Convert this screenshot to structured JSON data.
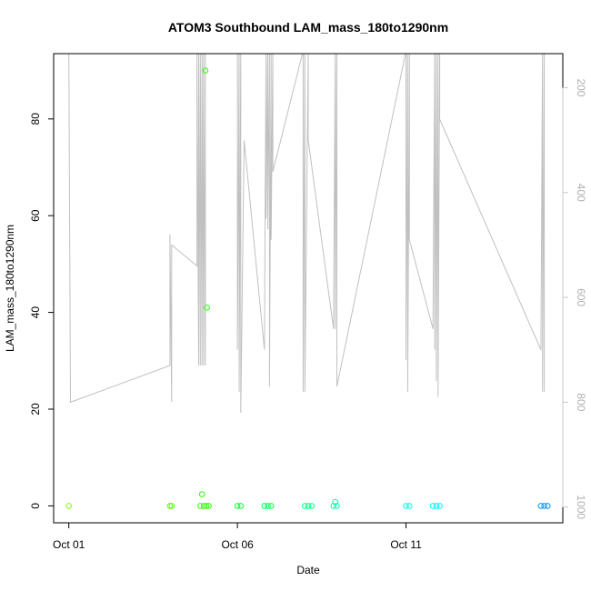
{
  "chart_data": {
    "type": "scatter",
    "title": "ATOM3 Southbound LAM_mass_180to1290nm",
    "xlabel": "Date",
    "ylabel": "LAM_mass_180to1290nm",
    "x_ticks": [
      "Oct 01",
      "Oct 06",
      "Oct 11"
    ],
    "x_tick_days": [
      1,
      6,
      11
    ],
    "xlim": [
      0.55,
      15.65
    ],
    "ylim": [
      -3.5,
      93.5
    ],
    "y_ticks": [
      0,
      20,
      40,
      60,
      80
    ],
    "y2_ticks": [
      200,
      400,
      600,
      800,
      1000
    ],
    "y2_inverted": true,
    "y2lim": [
      1030,
      135
    ],
    "y2_color": "#c8c8c8",
    "grid": false,
    "series": [
      {
        "kind": "points",
        "values_color_coded_by_latitude": true,
        "points": [
          {
            "x": 1.0,
            "y": 0.0,
            "color": "#80ff00"
          },
          {
            "x": 4.0,
            "y": 0.0,
            "color": "#55ff00"
          },
          {
            "x": 4.05,
            "y": 0.0,
            "color": "#55ff00"
          },
          {
            "x": 4.9,
            "y": 0.0,
            "color": "#2bff00"
          },
          {
            "x": 4.95,
            "y": 2.4,
            "color": "#2bff00"
          },
          {
            "x": 5.0,
            "y": 0.0,
            "color": "#2bff00"
          },
          {
            "x": 5.05,
            "y": 90.0,
            "color": "#2bff00"
          },
          {
            "x": 5.08,
            "y": 0.0,
            "color": "#2bff00"
          },
          {
            "x": 5.1,
            "y": 41.0,
            "color": "#2bff00"
          },
          {
            "x": 5.15,
            "y": 0.0,
            "color": "#2bff00"
          },
          {
            "x": 6.0,
            "y": 0.0,
            "color": "#00ff20"
          },
          {
            "x": 6.1,
            "y": 0.0,
            "color": "#00ff20"
          },
          {
            "x": 6.8,
            "y": 0.0,
            "color": "#00ff40"
          },
          {
            "x": 6.9,
            "y": 0.0,
            "color": "#00ff40"
          },
          {
            "x": 7.0,
            "y": 0.0,
            "color": "#00ff40"
          },
          {
            "x": 8.0,
            "y": 0.0,
            "color": "#00ff80"
          },
          {
            "x": 8.1,
            "y": 0.0,
            "color": "#00ff80"
          },
          {
            "x": 8.2,
            "y": 0.0,
            "color": "#00ff80"
          },
          {
            "x": 8.85,
            "y": 0.0,
            "color": "#00ffa0"
          },
          {
            "x": 8.9,
            "y": 0.8,
            "color": "#00ffa0"
          },
          {
            "x": 8.95,
            "y": 0.0,
            "color": "#00ffa0"
          },
          {
            "x": 11.0,
            "y": 0.0,
            "color": "#00ffe0"
          },
          {
            "x": 11.1,
            "y": 0.0,
            "color": "#00ffe0"
          },
          {
            "x": 11.8,
            "y": 0.0,
            "color": "#00f0ff"
          },
          {
            "x": 11.9,
            "y": 0.0,
            "color": "#00f0ff"
          },
          {
            "x": 12.0,
            "y": 0.0,
            "color": "#00f0ff"
          },
          {
            "x": 15.0,
            "y": 0.0,
            "color": "#0090ff"
          },
          {
            "x": 15.1,
            "y": 0.0,
            "color": "#0090ff"
          },
          {
            "x": 15.2,
            "y": 0.0,
            "color": "#0090ff"
          }
        ]
      },
      {
        "kind": "line",
        "axis": "y2",
        "color": "#c0c0c0",
        "points": [
          [
            1.0,
            130
          ],
          [
            1.05,
            800
          ],
          [
            4.0,
            730
          ],
          [
            4.0,
            480
          ],
          [
            4.05,
            800
          ],
          [
            4.05,
            500
          ],
          [
            4.8,
            540
          ],
          [
            4.8,
            130
          ],
          [
            4.85,
            730
          ],
          [
            4.85,
            130
          ],
          [
            4.9,
            730
          ],
          [
            4.9,
            130
          ],
          [
            4.95,
            730
          ],
          [
            4.95,
            130
          ],
          [
            5.0,
            730
          ],
          [
            5.0,
            130
          ],
          [
            5.05,
            730
          ],
          [
            5.05,
            130
          ],
          [
            5.1,
            130
          ],
          [
            6.0,
            130
          ],
          [
            6.0,
            700
          ],
          [
            6.05,
            130
          ],
          [
            6.05,
            780
          ],
          [
            6.1,
            130
          ],
          [
            6.1,
            820
          ],
          [
            6.2,
            300
          ],
          [
            6.8,
            700
          ],
          [
            6.85,
            130
          ],
          [
            6.85,
            450
          ],
          [
            6.9,
            130
          ],
          [
            6.9,
            470
          ],
          [
            6.95,
            130
          ],
          [
            6.95,
            770
          ],
          [
            7.0,
            130
          ],
          [
            7.0,
            490
          ],
          [
            7.05,
            130
          ],
          [
            7.05,
            360
          ],
          [
            7.95,
            130
          ],
          [
            7.95,
            780
          ],
          [
            8.0,
            130
          ],
          [
            8.0,
            780
          ],
          [
            8.1,
            130
          ],
          [
            8.1,
            300
          ],
          [
            8.85,
            660
          ],
          [
            8.9,
            130
          ],
          [
            8.9,
            660
          ],
          [
            8.95,
            130
          ],
          [
            8.95,
            770
          ],
          [
            11.0,
            130
          ],
          [
            11.0,
            720
          ],
          [
            11.05,
            130
          ],
          [
            11.05,
            780
          ],
          [
            11.1,
            130
          ],
          [
            11.1,
            490
          ],
          [
            11.8,
            660
          ],
          [
            11.85,
            130
          ],
          [
            11.85,
            700
          ],
          [
            11.9,
            130
          ],
          [
            11.9,
            760
          ],
          [
            11.95,
            130
          ],
          [
            11.95,
            790
          ],
          [
            12.0,
            130
          ],
          [
            12.0,
            260
          ],
          [
            15.0,
            700
          ],
          [
            15.05,
            130
          ],
          [
            15.05,
            780
          ],
          [
            15.1,
            130
          ],
          [
            15.1,
            780
          ]
        ]
      }
    ]
  }
}
